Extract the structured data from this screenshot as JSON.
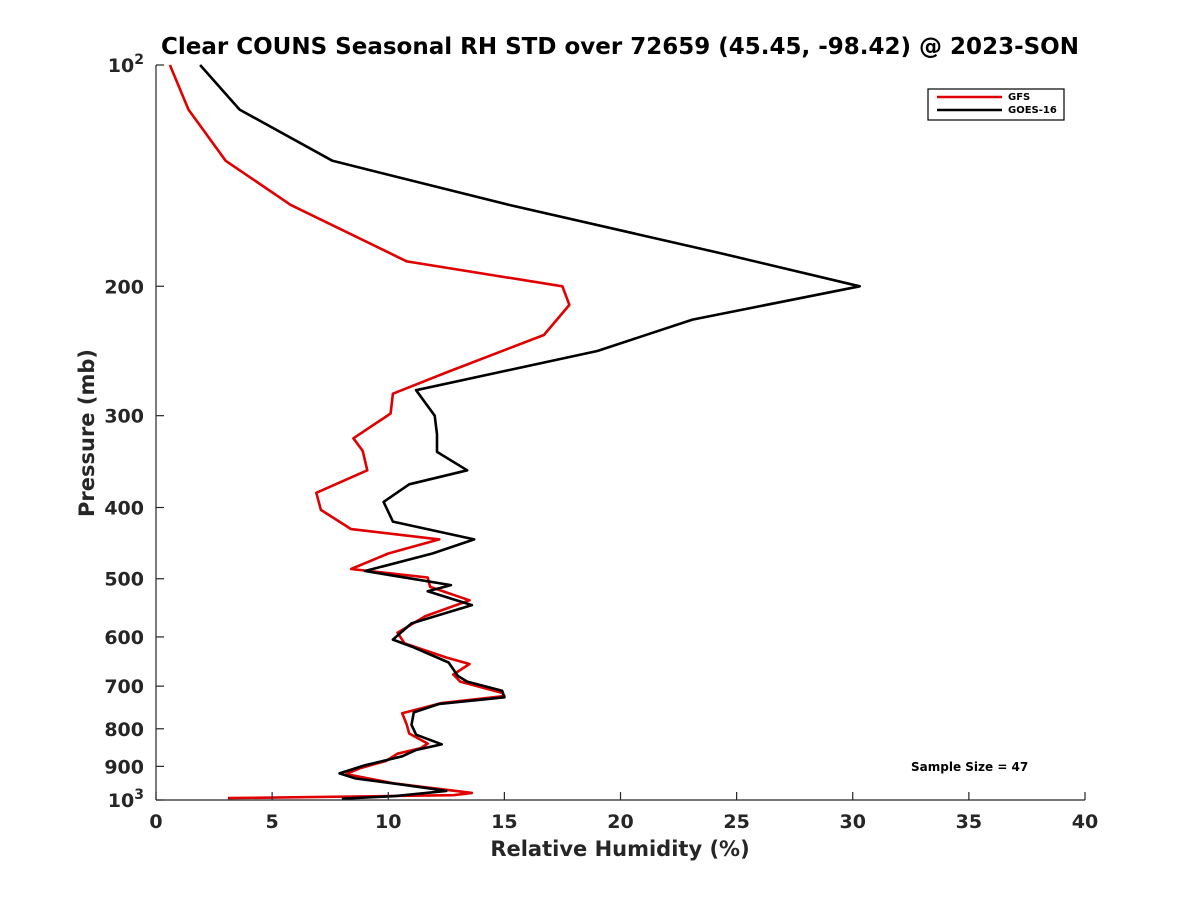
{
  "chart_data": {
    "type": "line",
    "title": "Clear COUNS Seasonal RH STD over 72659 (45.45, -98.42) @ 2023-SON",
    "xlabel": "Relative Humidity (%)",
    "ylabel": "Pressure (mb)",
    "xlim": [
      0,
      40
    ],
    "ylim": [
      100,
      1000
    ],
    "yscale": "log",
    "yreversed": true,
    "x_ticks": [
      "0",
      "5",
      "10",
      "15",
      "20",
      "25",
      "30",
      "35",
      "40"
    ],
    "x_tick_values": [
      0,
      5,
      10,
      15,
      20,
      25,
      30,
      35,
      40
    ],
    "y_ticks": [
      {
        "value": 100,
        "base": "10",
        "exp": "2"
      },
      {
        "value": 200,
        "label": "200"
      },
      {
        "value": 300,
        "label": "300"
      },
      {
        "value": 400,
        "label": "400"
      },
      {
        "value": 500,
        "label": "500"
      },
      {
        "value": 600,
        "label": "600"
      },
      {
        "value": 700,
        "label": "700"
      },
      {
        "value": 800,
        "label": "800"
      },
      {
        "value": 900,
        "label": "900"
      },
      {
        "value": 1000,
        "base": "10",
        "exp": "3"
      }
    ],
    "legend_position": "top-right",
    "annotation": "Sample Size = 47",
    "series": [
      {
        "name": "GFS",
        "color": "#e00000",
        "points": [
          [
            0.6,
            100
          ],
          [
            1.4,
            115
          ],
          [
            3.0,
            135
          ],
          [
            5.8,
            155
          ],
          [
            10.8,
            185
          ],
          [
            17.5,
            200
          ],
          [
            17.8,
            212
          ],
          [
            16.7,
            233
          ],
          [
            12.5,
            262
          ],
          [
            10.2,
            280
          ],
          [
            10.1,
            298
          ],
          [
            8.5,
            322
          ],
          [
            8.9,
            335
          ],
          [
            9.1,
            356
          ],
          [
            6.9,
            382
          ],
          [
            7.1,
            403
          ],
          [
            8.4,
            428
          ],
          [
            12.2,
            442
          ],
          [
            10.0,
            462
          ],
          [
            8.4,
            485
          ],
          [
            11.7,
            498
          ],
          [
            11.8,
            513
          ],
          [
            13.5,
            535
          ],
          [
            11.6,
            562
          ],
          [
            10.4,
            592
          ],
          [
            10.7,
            612
          ],
          [
            12.5,
            640
          ],
          [
            13.5,
            653
          ],
          [
            12.8,
            675
          ],
          [
            13.1,
            690
          ],
          [
            14.9,
            715
          ],
          [
            15.0,
            722
          ],
          [
            12.3,
            738
          ],
          [
            10.6,
            762
          ],
          [
            10.8,
            790
          ],
          [
            10.9,
            812
          ],
          [
            11.7,
            838
          ],
          [
            11.4,
            850
          ],
          [
            10.4,
            865
          ],
          [
            9.9,
            885
          ],
          [
            8.8,
            905
          ],
          [
            8.2,
            922
          ],
          [
            10.3,
            950
          ],
          [
            13.6,
            978
          ],
          [
            12.8,
            985
          ],
          [
            3.1,
            994
          ]
        ]
      },
      {
        "name": "GOES-16",
        "color": "#000000",
        "points": [
          [
            1.9,
            100
          ],
          [
            3.6,
            115
          ],
          [
            7.6,
            135
          ],
          [
            15.2,
            155
          ],
          [
            24.2,
            180
          ],
          [
            30.3,
            200
          ],
          [
            23.1,
            222
          ],
          [
            19.0,
            245
          ],
          [
            11.2,
            277
          ],
          [
            12.0,
            300
          ],
          [
            12.1,
            318
          ],
          [
            12.1,
            336
          ],
          [
            13.4,
            356
          ],
          [
            10.9,
            372
          ],
          [
            9.8,
            393
          ],
          [
            10.2,
            418
          ],
          [
            13.7,
            442
          ],
          [
            11.9,
            462
          ],
          [
            9.0,
            488
          ],
          [
            12.7,
            510
          ],
          [
            11.7,
            520
          ],
          [
            13.6,
            543
          ],
          [
            11.0,
            575
          ],
          [
            10.2,
            605
          ],
          [
            11.1,
            620
          ],
          [
            12.6,
            650
          ],
          [
            13.0,
            678
          ],
          [
            13.4,
            690
          ],
          [
            14.9,
            710
          ],
          [
            15.0,
            725
          ],
          [
            12.2,
            740
          ],
          [
            11.1,
            760
          ],
          [
            11.0,
            790
          ],
          [
            11.2,
            815
          ],
          [
            12.3,
            840
          ],
          [
            11.2,
            855
          ],
          [
            10.6,
            872
          ],
          [
            9.0,
            897
          ],
          [
            7.9,
            920
          ],
          [
            8.6,
            935
          ],
          [
            10.5,
            952
          ],
          [
            12.5,
            972
          ],
          [
            10.3,
            988
          ],
          [
            8.0,
            996
          ]
        ]
      }
    ]
  }
}
